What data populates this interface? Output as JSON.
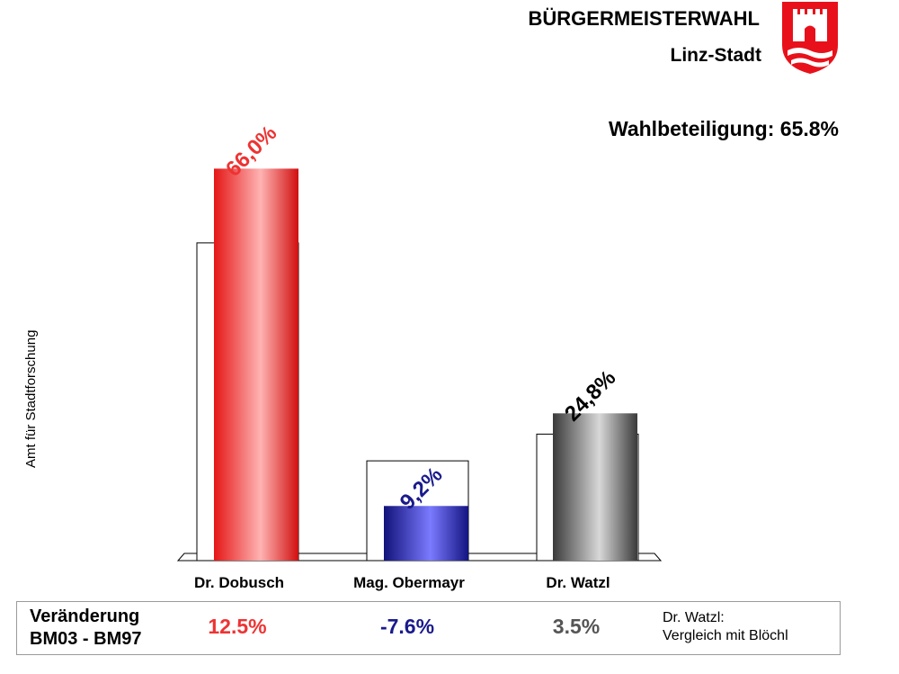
{
  "header": {
    "title": "BÜRGERMEISTERWAHL",
    "subtitle": "Linz-Stadt",
    "turnout": "Wahlbeteiligung:  65.8%"
  },
  "side_label": "Amt für Stadtforschung",
  "colors": {
    "dobusch": "#ee1c1c",
    "obermayr": "#1a1a8c",
    "watzl": "#555555",
    "dobusch_label": "#ee3333",
    "obermayr_label": "#1a1a8c",
    "watzl_label": "#000000",
    "crest_red": "#e8111b"
  },
  "crest_icon": "linz-coat-of-arms-icon",
  "chart_data": {
    "type": "bar",
    "categories": [
      "Dr. Dobusch",
      "Mag. Obermayr",
      "Dr. Watzl"
    ],
    "series": [
      {
        "values": [
          53.5,
          16.8,
          21.3
        ]
      },
      {
        "values": [
          66.0,
          9.2,
          24.8
        ],
        "labels": [
          "66,0%",
          "9,2%",
          "24,8%"
        ]
      }
    ],
    "ylim": [
      0,
      70
    ],
    "grid": false,
    "legend": "none"
  },
  "comparison": {
    "label_line1": "Veränderung",
    "label_line2": "BM03 - BM97",
    "values": [
      "12.5%",
      "-7.6%",
      "3.5%"
    ],
    "note_line1": "Dr. Watzl:",
    "note_line2": "Vergleich mit Blöchl"
  }
}
